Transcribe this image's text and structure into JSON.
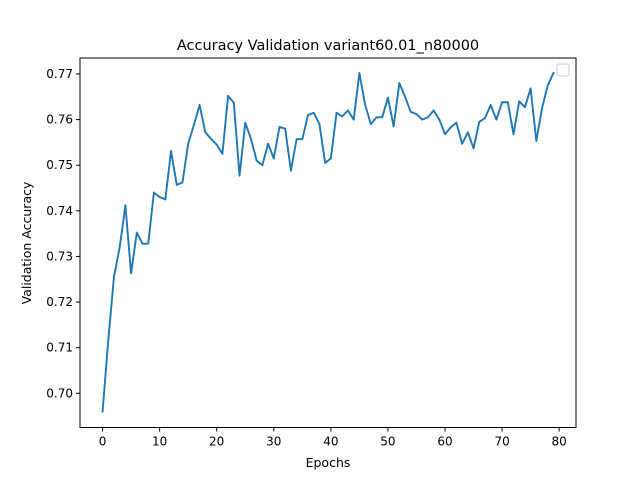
{
  "chart_data": {
    "type": "line",
    "title": "Accuracy Validation variant60.01_n80000",
    "xlabel": "Epochs",
    "ylabel": "Validation Accuracy",
    "xlim": [
      -3.95,
      82.95
    ],
    "ylim": [
      0.6925,
      0.7735
    ],
    "xticks": [
      0,
      10,
      20,
      30,
      40,
      50,
      60,
      70,
      80
    ],
    "xtick_labels": [
      "0",
      "10",
      "20",
      "30",
      "40",
      "50",
      "60",
      "70",
      "80"
    ],
    "yticks": [
      0.7,
      0.71,
      0.72,
      0.73,
      0.74,
      0.75,
      0.76,
      0.77
    ],
    "ytick_labels": [
      "0.70",
      "0.71",
      "0.72",
      "0.73",
      "0.74",
      "0.75",
      "0.76",
      "0.77"
    ],
    "grid": false,
    "legend": {
      "placement": "top-right",
      "entries": []
    },
    "series": [
      {
        "color": "#1f77b4",
        "x": [
          0,
          1,
          2,
          3,
          4,
          5,
          6,
          7,
          8,
          9,
          10,
          11,
          12,
          13,
          14,
          15,
          16,
          17,
          18,
          19,
          20,
          21,
          22,
          23,
          24,
          25,
          26,
          27,
          28,
          29,
          30,
          31,
          32,
          33,
          34,
          35,
          36,
          37,
          38,
          39,
          40,
          41,
          42,
          43,
          44,
          45,
          46,
          47,
          48,
          49,
          50,
          51,
          52,
          53,
          54,
          55,
          56,
          57,
          58,
          59,
          60,
          61,
          62,
          63,
          64,
          65,
          66,
          67,
          68,
          69,
          70,
          71,
          72,
          73,
          74,
          75,
          76,
          77,
          78,
          79
        ],
        "y": [
          0.696,
          0.7115,
          0.7255,
          0.732,
          0.7412,
          0.7263,
          0.7352,
          0.7328,
          0.7328,
          0.744,
          0.743,
          0.7425,
          0.7531,
          0.7457,
          0.7462,
          0.7547,
          0.7588,
          0.7632,
          0.7572,
          0.7558,
          0.7545,
          0.7525,
          0.7652,
          0.7637,
          0.7477,
          0.7593,
          0.7558,
          0.751,
          0.75,
          0.7547,
          0.7515,
          0.7584,
          0.758,
          0.7488,
          0.7557,
          0.7557,
          0.761,
          0.7615,
          0.759,
          0.7505,
          0.7515,
          0.7615,
          0.7607,
          0.762,
          0.76,
          0.7702,
          0.7633,
          0.759,
          0.7605,
          0.7605,
          0.7648,
          0.7585,
          0.768,
          0.765,
          0.7617,
          0.7612,
          0.76,
          0.7605,
          0.762,
          0.76,
          0.7568,
          0.7583,
          0.7593,
          0.7547,
          0.7572,
          0.7537,
          0.7595,
          0.7603,
          0.7632,
          0.76,
          0.7638,
          0.7638,
          0.7568,
          0.764,
          0.7627,
          0.7668,
          0.7553,
          0.7625,
          0.7675,
          0.7702
        ]
      }
    ]
  }
}
